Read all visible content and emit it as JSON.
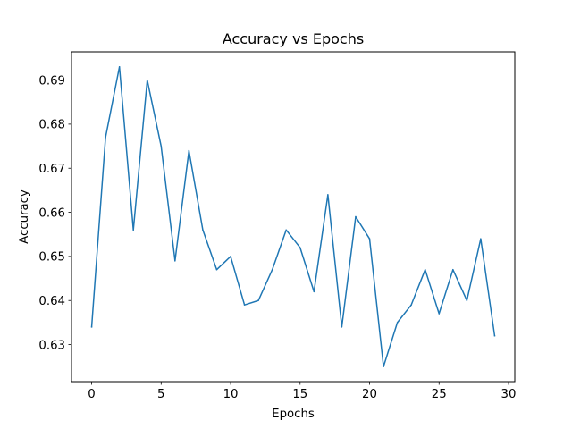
{
  "chart_data": {
    "type": "line",
    "title": "Accuracy vs Epochs",
    "xlabel": "Epochs",
    "ylabel": "Accuracy",
    "xlim": [
      -1.45,
      30.45
    ],
    "ylim": [
      0.6216,
      0.6964
    ],
    "xticks": [
      0,
      5,
      10,
      15,
      20,
      25,
      30
    ],
    "yticks": [
      0.63,
      0.64,
      0.65,
      0.66,
      0.67,
      0.68,
      0.69
    ],
    "grid": false,
    "legend": "none",
    "series": [
      {
        "color": "#1f77b4",
        "x": [
          0,
          1,
          2,
          3,
          4,
          5,
          6,
          7,
          8,
          9,
          10,
          11,
          12,
          13,
          14,
          15,
          16,
          17,
          18,
          19,
          20,
          21,
          22,
          23,
          24,
          25,
          26,
          27,
          28,
          29
        ],
        "y": [
          0.634,
          0.677,
          0.693,
          0.656,
          0.69,
          0.675,
          0.649,
          0.674,
          0.656,
          0.647,
          0.65,
          0.639,
          0.64,
          0.647,
          0.656,
          0.652,
          0.642,
          0.664,
          0.634,
          0.659,
          0.654,
          0.625,
          0.635,
          0.639,
          0.647,
          0.637,
          0.647,
          0.64,
          0.654,
          0.632
        ]
      }
    ]
  }
}
